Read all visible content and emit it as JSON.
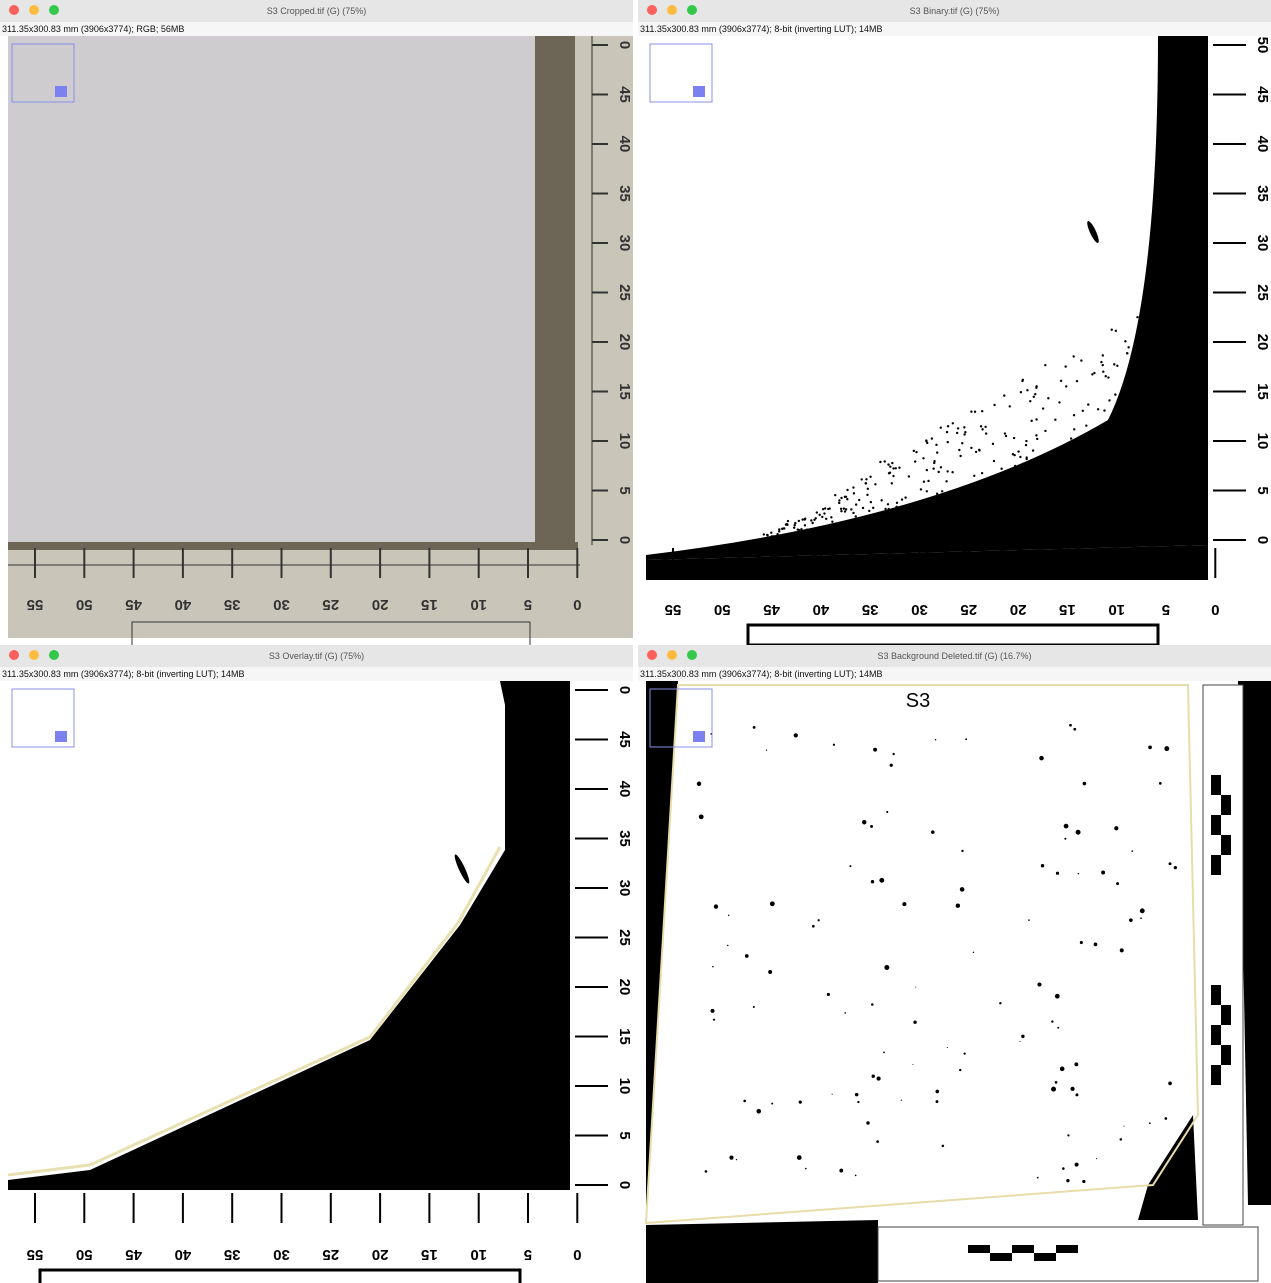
{
  "windows": [
    {
      "title": "S3 Cropped.tif (G) (75%)",
      "info": "311.35x300.83 mm (3906x3774); RGB; 56MB",
      "ruler_v": [
        "0",
        "45",
        "40",
        "35",
        "30",
        "25",
        "20",
        "15",
        "10",
        "5",
        "0"
      ],
      "ruler_h": [
        "55",
        "50",
        "45",
        "40",
        "35",
        "30",
        "25",
        "20",
        "15",
        "10",
        "5",
        "0"
      ]
    },
    {
      "title": "S3 Binary.tif (G) (75%)",
      "info": "311.35x300.83 mm (3906x3774); 8-bit (inverting LUT); 14MB",
      "ruler_v": [
        "50",
        "45",
        "40",
        "35",
        "30",
        "25",
        "20",
        "15",
        "10",
        "5",
        "0"
      ],
      "ruler_h": [
        "55",
        "50",
        "45",
        "40",
        "35",
        "30",
        "25",
        "20",
        "15",
        "10",
        "5",
        "0"
      ]
    },
    {
      "title": "S3 Overlay.tif (G) (75%)",
      "info": "311.35x300.83 mm (3906x3774); 8-bit (inverting LUT); 14MB",
      "ruler_v": [
        "0",
        "45",
        "40",
        "35",
        "30",
        "25",
        "20",
        "15",
        "10",
        "5",
        "0"
      ],
      "ruler_h": [
        "55",
        "50",
        "45",
        "40",
        "35",
        "30",
        "25",
        "20",
        "15",
        "10",
        "5",
        "0"
      ]
    },
    {
      "title": "S3 Background Deleted.tif (G) (16.7%)",
      "info": "311.35x300.83 mm (3906x3774); 8-bit (inverting LUT); 14MB",
      "label": "S3"
    }
  ]
}
